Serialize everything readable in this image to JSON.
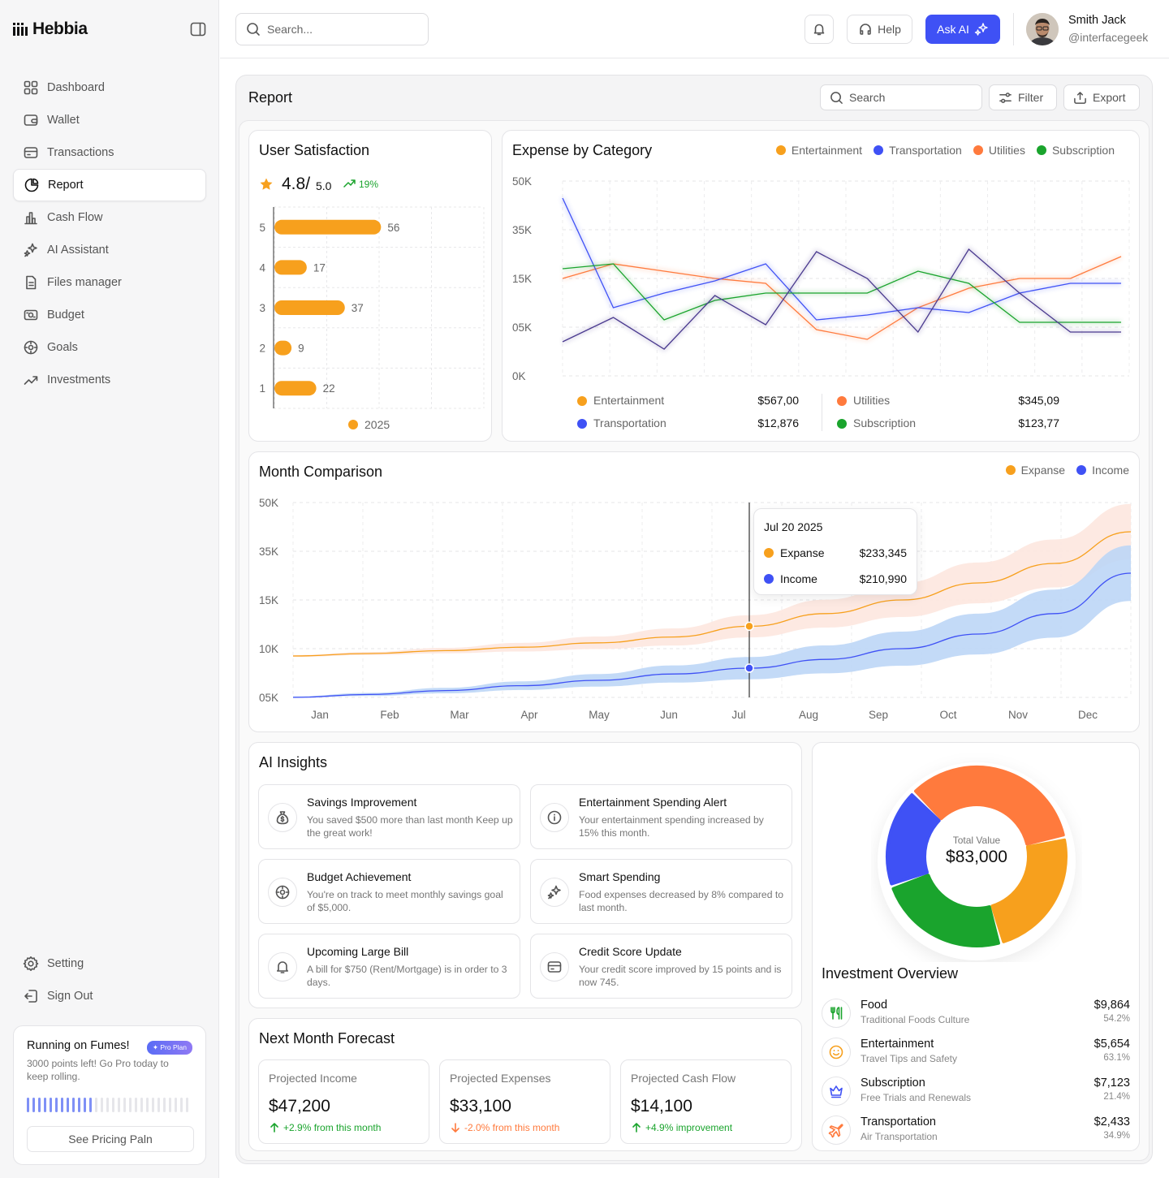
{
  "app": {
    "name": "Hebbia"
  },
  "sidebar": {
    "items": [
      {
        "label": "Dashboard",
        "icon": "dashboard-icon"
      },
      {
        "label": "Wallet",
        "icon": "wallet-icon"
      },
      {
        "label": "Transactions",
        "icon": "card-icon"
      },
      {
        "label": "Report",
        "icon": "pie-icon",
        "active": true
      },
      {
        "label": "Cash Flow",
        "icon": "bars-icon"
      },
      {
        "label": "AI Assistant",
        "icon": "sparkle-icon"
      },
      {
        "label": "Files manager",
        "icon": "file-icon"
      },
      {
        "label": "Budget",
        "icon": "budget-icon"
      },
      {
        "label": "Goals",
        "icon": "target-icon"
      },
      {
        "label": "Investments",
        "icon": "trend-icon"
      }
    ],
    "setting": "Setting",
    "signout": "Sign Out",
    "upsell": {
      "title": "Running on Fumes!",
      "badge": "Pro Plan",
      "text": "3000 points left!  Go Pro today to keep rolling.",
      "progress": 0.42,
      "button": "See Pricing Paln"
    }
  },
  "header": {
    "search_placeholder": "Search...",
    "help": "Help",
    "ask_ai": "Ask AI",
    "user_name": "Smith Jack",
    "user_handle": "@interfacegeek"
  },
  "report": {
    "title": "Report",
    "search": "Search",
    "filter": "Filter",
    "export": "Export"
  },
  "colors": {
    "orange": "#f7a01d",
    "blue": "#3f51f5",
    "red_orange": "#ff7a3d",
    "green": "#1aa42d",
    "accent": "#3f51f5"
  },
  "satisfaction": {
    "title": "User Satisfaction",
    "score": "4.8/",
    "max": "5.0",
    "change": "19%",
    "legend": "2025",
    "chart_data": {
      "type": "bar",
      "orientation": "horizontal",
      "categories": [
        "5",
        "4",
        "3",
        "2",
        "1"
      ],
      "values": [
        56,
        17,
        37,
        9,
        22
      ],
      "xlim": [
        0,
        110
      ],
      "series_name": "2025"
    }
  },
  "expense": {
    "title": "Expense by Category",
    "legend": [
      "Entertainment",
      "Transportation",
      "Utilities",
      "Subscription"
    ],
    "chart_data": {
      "type": "line",
      "y_ticks": [
        "50K",
        "35K",
        "15K",
        "05K",
        "0K"
      ],
      "ylim": [
        0,
        4
      ],
      "series": [
        {
          "name": "Entertainment",
          "color": "#ff7a3d",
          "values": [
            2.0,
            2.3,
            2.15,
            2.0,
            1.9,
            0.95,
            0.75,
            1.4,
            1.8,
            2.0,
            2.0,
            2.45
          ]
        },
        {
          "name": "Transportation",
          "color": "#3f51f5",
          "values": [
            3.65,
            1.4,
            1.7,
            1.95,
            2.3,
            1.15,
            1.25,
            1.4,
            1.3,
            1.7,
            1.9,
            1.9
          ]
        },
        {
          "name": "Utilities",
          "color": "#1aa42d",
          "values": [
            2.2,
            2.3,
            1.15,
            1.55,
            1.7,
            1.7,
            1.7,
            2.15,
            1.9,
            1.1,
            1.1,
            1.1
          ]
        },
        {
          "name": "Subscription",
          "color": "#4a3a8f",
          "values": [
            0.7,
            1.2,
            0.55,
            1.65,
            1.05,
            2.55,
            2.0,
            0.9,
            2.6,
            1.7,
            0.9,
            0.9
          ]
        }
      ]
    },
    "summary": [
      {
        "name": "Entertainment",
        "value": "$567,00",
        "color": "#f7a01d"
      },
      {
        "name": "Utilities",
        "value": "$345,09",
        "color": "#ff7a3d"
      },
      {
        "name": "Transportation",
        "value": "$12,876",
        "color": "#3f51f5"
      },
      {
        "name": "Subscription",
        "value": "$123,77",
        "color": "#1aa42d"
      }
    ]
  },
  "month": {
    "title": "Month Comparison",
    "legend": [
      "Expanse",
      "Income"
    ],
    "chart_data": {
      "type": "area",
      "categories": [
        "Jan",
        "Feb",
        "Mar",
        "Apr",
        "May",
        "Jun",
        "Jul",
        "Aug",
        "Sep",
        "Oct",
        "Nov",
        "Dec"
      ],
      "y_ticks": [
        "50K",
        "35K",
        "15K",
        "10K",
        "05K"
      ],
      "ylim": [
        0,
        4
      ],
      "selected": "Jul",
      "series": [
        {
          "name": "Expanse",
          "color": "#f7a01d",
          "values": [
            0.85,
            0.9,
            0.96,
            1.03,
            1.12,
            1.24,
            1.46,
            1.72,
            2.0,
            2.35,
            2.75,
            3.4
          ]
        },
        {
          "name": "Income",
          "color": "#3f51f5",
          "values": [
            0.0,
            0.06,
            0.14,
            0.24,
            0.35,
            0.48,
            0.6,
            0.78,
            1.0,
            1.3,
            1.72,
            2.55
          ]
        }
      ]
    },
    "tooltip": {
      "date": "Jul 20  2025",
      "rows": [
        {
          "name": "Expanse",
          "value": "$233,345"
        },
        {
          "name": "Income",
          "value": "$210,990"
        }
      ]
    }
  },
  "insights": {
    "title": "AI Insights",
    "items": [
      {
        "title": "Savings Improvement",
        "desc": "You saved $500 more than last month Keep up the great work!",
        "icon": "money-bag-icon"
      },
      {
        "title": "Entertainment Spending Alert",
        "desc": "Your entertainment spending increased by 15% this month.",
        "icon": "info-icon"
      },
      {
        "title": "Budget Achievement",
        "desc": "You're on track to meet monthly savings goal of $5,000.",
        "icon": "target-icon"
      },
      {
        "title": "Smart Spending",
        "desc": "Food expenses decreased by 8% compared to last month.",
        "icon": "sparkle-icon"
      },
      {
        "title": "Upcoming Large Bill",
        "desc": "A bill for $750 (Rent/Mortgage) is in order to 3 days.",
        "icon": "bell-icon"
      },
      {
        "title": "Credit Score Update",
        "desc": "Your credit score improved by 15 points and is now 745.",
        "icon": "card-icon"
      }
    ]
  },
  "forecast": {
    "title": "Next Month Forecast",
    "items": [
      {
        "label": "Projected Income",
        "value": "$47,200",
        "change": "+2.9% from this month",
        "dir": "up"
      },
      {
        "label": "Projected Expenses",
        "value": "$33,100",
        "change": "-2.0% from this month",
        "dir": "down"
      },
      {
        "label": "Projected Cash Flow",
        "value": "$14,100",
        "change": "+4.9% improvement",
        "dir": "up"
      }
    ]
  },
  "investment": {
    "title": "Investment Overview",
    "total_label": "Total Value",
    "total": "$83,000",
    "chart_data": {
      "type": "pie",
      "donut": true,
      "slices": [
        {
          "name": "Orange",
          "color": "#ff7a3d",
          "value": 34
        },
        {
          "name": "Amber",
          "color": "#f7a01d",
          "value": 24
        },
        {
          "name": "Green",
          "color": "#1aa42d",
          "value": 24
        },
        {
          "name": "Blue",
          "color": "#3f51f5",
          "value": 18
        }
      ]
    },
    "items": [
      {
        "name": "Food",
        "sub": "Traditional Foods Culture",
        "amount": "$9,864",
        "pct": "54.2%",
        "icon": "food-icon",
        "color": "#1aa42d"
      },
      {
        "name": "Entertainment",
        "sub": "Travel Tips and Safety",
        "amount": "$5,654",
        "pct": "63.1%",
        "icon": "smile-icon",
        "color": "#f7a01d"
      },
      {
        "name": "Subscription",
        "sub": "Free Trials and Renewals",
        "amount": "$7,123",
        "pct": "21.4%",
        "icon": "crown-icon",
        "color": "#3f51f5"
      },
      {
        "name": "Transportation",
        "sub": "Air Transportation",
        "amount": "$2,433",
        "pct": "34.9%",
        "icon": "plane-icon",
        "color": "#ff7a3d"
      }
    ]
  }
}
